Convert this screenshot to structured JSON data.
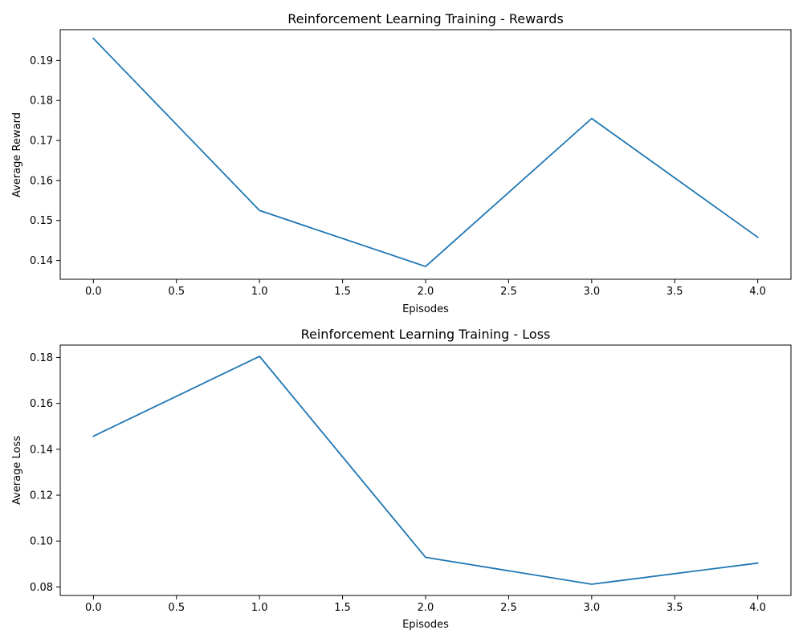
{
  "chart_data": [
    {
      "type": "line",
      "title": "Reinforcement Learning Training - Rewards",
      "xlabel": "Episodes",
      "ylabel": "Average Reward",
      "x": [
        0,
        1,
        2,
        3,
        4
      ],
      "series": [
        {
          "values": [
            0.1955,
            0.1525,
            0.1385,
            0.1755,
            0.1458
          ]
        }
      ],
      "xlim": [
        -0.2,
        4.2
      ],
      "ylim": [
        0.1353,
        0.1977
      ],
      "xticks": [
        0.0,
        0.5,
        1.0,
        1.5,
        2.0,
        2.5,
        3.0,
        3.5,
        4.0
      ],
      "xtick_labels": [
        "0.0",
        "0.5",
        "1.0",
        "1.5",
        "2.0",
        "2.5",
        "3.0",
        "3.5",
        "4.0"
      ],
      "yticks": [
        0.14,
        0.15,
        0.16,
        0.17,
        0.18,
        0.19
      ],
      "ytick_labels": [
        "0.14",
        "0.15",
        "0.16",
        "0.17",
        "0.18",
        "0.19"
      ],
      "line_color": "#1f77b4",
      "grid": false,
      "legend": "none"
    },
    {
      "type": "line",
      "title": "Reinforcement Learning Training - Loss",
      "xlabel": "Episodes",
      "ylabel": "Average Loss",
      "x": [
        0,
        1,
        2,
        3,
        4
      ],
      "series": [
        {
          "values": [
            0.1457,
            0.1805,
            0.0929,
            0.0812,
            0.0904
          ]
        }
      ],
      "xlim": [
        -0.2,
        4.2
      ],
      "ylim": [
        0.0763,
        0.1854
      ],
      "xticks": [
        0.0,
        0.5,
        1.0,
        1.5,
        2.0,
        2.5,
        3.0,
        3.5,
        4.0
      ],
      "xtick_labels": [
        "0.0",
        "0.5",
        "1.0",
        "1.5",
        "2.0",
        "2.5",
        "3.0",
        "3.5",
        "4.0"
      ],
      "yticks": [
        0.08,
        0.1,
        0.12,
        0.14,
        0.16,
        0.18
      ],
      "ytick_labels": [
        "0.08",
        "0.10",
        "0.12",
        "0.14",
        "0.16",
        "0.18"
      ],
      "line_color": "#1f77b4",
      "grid": false,
      "legend": "none"
    }
  ]
}
